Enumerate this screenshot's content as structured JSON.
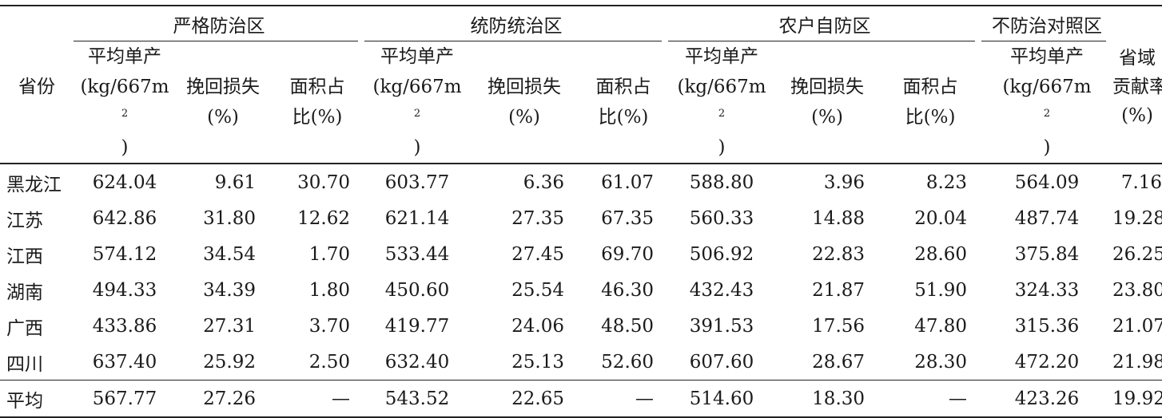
{
  "table": {
    "province_header": "省份",
    "groups": {
      "strict": "严格防治区",
      "unified": "统防统治区",
      "farmer": "农户自防区",
      "control": "不防治对照区"
    },
    "contribution_header": {
      "line1": "省域",
      "line2": "贡献率",
      "line3": "(%)"
    },
    "subheaders": {
      "yield_line1": "平均单产",
      "yield_line2_prefix": "(kg/667m",
      "yield_line2_sup": "2",
      "yield_line2_suffix": ")",
      "loss_line1": "挽回损失",
      "loss_line2": "(%)",
      "area_line1": "面积占",
      "area_line2": "比(%)"
    },
    "rows": [
      {
        "province": "黑龙江",
        "s_yield": "624.04",
        "s_loss": "9.61",
        "s_area": "30.70",
        "u_yield": "603.77",
        "u_loss": "6.36",
        "u_area": "61.07",
        "f_yield": "588.80",
        "f_loss": "3.96",
        "f_area": "8.23",
        "c_yield": "564.09",
        "contrib": "7.16"
      },
      {
        "province": "江苏",
        "s_yield": "642.86",
        "s_loss": "31.80",
        "s_area": "12.62",
        "u_yield": "621.14",
        "u_loss": "27.35",
        "u_area": "67.35",
        "f_yield": "560.33",
        "f_loss": "14.88",
        "f_area": "20.04",
        "c_yield": "487.74",
        "contrib": "19.28"
      },
      {
        "province": "江西",
        "s_yield": "574.12",
        "s_loss": "34.54",
        "s_area": "1.70",
        "u_yield": "533.44",
        "u_loss": "27.45",
        "u_area": "69.70",
        "f_yield": "506.92",
        "f_loss": "22.83",
        "f_area": "28.60",
        "c_yield": "375.84",
        "contrib": "26.25"
      },
      {
        "province": "湖南",
        "s_yield": "494.33",
        "s_loss": "34.39",
        "s_area": "1.80",
        "u_yield": "450.60",
        "u_loss": "25.54",
        "u_area": "46.30",
        "f_yield": "432.43",
        "f_loss": "21.87",
        "f_area": "51.90",
        "c_yield": "324.33",
        "contrib": "23.80"
      },
      {
        "province": "广西",
        "s_yield": "433.86",
        "s_loss": "27.31",
        "s_area": "3.70",
        "u_yield": "419.77",
        "u_loss": "24.06",
        "u_area": "48.50",
        "f_yield": "391.53",
        "f_loss": "17.56",
        "f_area": "47.80",
        "c_yield": "315.36",
        "contrib": "21.07"
      },
      {
        "province": "四川",
        "s_yield": "637.40",
        "s_loss": "25.92",
        "s_area": "2.50",
        "u_yield": "632.40",
        "u_loss": "25.13",
        "u_area": "52.60",
        "f_yield": "607.60",
        "f_loss": "28.67",
        "f_area": "28.30",
        "c_yield": "472.20",
        "contrib": "21.98"
      }
    ],
    "average": {
      "province": "平均",
      "s_yield": "567.77",
      "s_loss": "27.26",
      "s_area": "—",
      "u_yield": "543.52",
      "u_loss": "22.65",
      "u_area": "—",
      "f_yield": "514.60",
      "f_loss": "18.30",
      "f_area": "—",
      "c_yield": "423.26",
      "contrib": "19.92"
    }
  }
}
